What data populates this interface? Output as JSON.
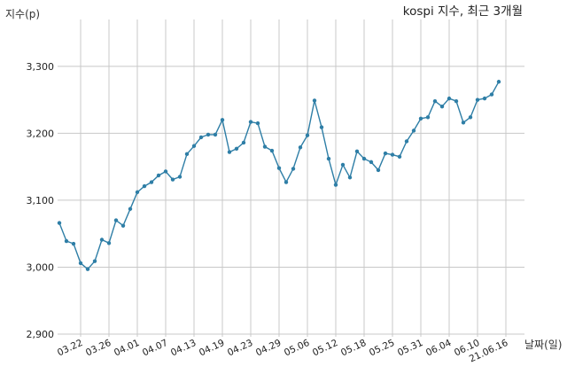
{
  "chart_data": {
    "type": "line",
    "title": "kospi 지수, 최근 3개월",
    "xlabel": "날짜(일)",
    "ylabel": "지수(p)",
    "ylim": [
      2900,
      3370
    ],
    "y_ticks": [
      2900,
      3000,
      3100,
      3200,
      3300
    ],
    "y_tick_labels": [
      "2,900",
      "3,000",
      "3,100",
      "3,200",
      "3,300"
    ],
    "grid": true,
    "x_ticks": [
      {
        "label": "03.22",
        "index": 3
      },
      {
        "label": "03.26",
        "index": 7
      },
      {
        "label": "04.01",
        "index": 11
      },
      {
        "label": "04.07",
        "index": 15
      },
      {
        "label": "04.13",
        "index": 19
      },
      {
        "label": "04.19",
        "index": 23
      },
      {
        "label": "04.23",
        "index": 27
      },
      {
        "label": "04.29",
        "index": 31
      },
      {
        "label": "05.06",
        "index": 35
      },
      {
        "label": "05.12",
        "index": 39
      },
      {
        "label": "05.18",
        "index": 43
      },
      {
        "label": "05.25",
        "index": 47
      },
      {
        "label": "05.31",
        "index": 51
      },
      {
        "label": "06.04",
        "index": 55
      },
      {
        "label": "06.10",
        "index": 59
      },
      {
        "label": "21.06.16",
        "index": 63
      }
    ],
    "values": [
      3066,
      3039,
      3035,
      3006,
      2997,
      3009,
      3041,
      3036,
      3070,
      3062,
      3087,
      3112,
      3121,
      3127,
      3137,
      3143,
      3131,
      3135,
      3169,
      3181,
      3194,
      3198,
      3198,
      3220,
      3172,
      3177,
      3186,
      3217,
      3215,
      3180,
      3174,
      3148,
      3127,
      3147,
      3179,
      3197,
      3249,
      3209,
      3162,
      3123,
      3153,
      3134,
      3173,
      3162,
      3157,
      3145,
      3170,
      3168,
      3165,
      3188,
      3204,
      3222,
      3224,
      3248,
      3240,
      3252,
      3248,
      3216,
      3224,
      3250,
      3252,
      3258,
      3277
    ]
  }
}
